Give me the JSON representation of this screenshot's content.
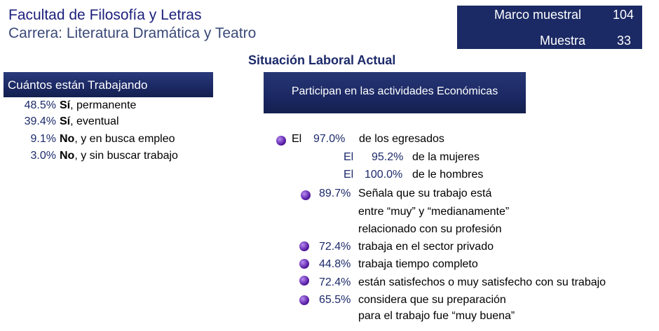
{
  "header": {
    "title": "Facultad de Filosofía y Letras",
    "subtitle": "Carrera: Literatura Dramática y Teatro"
  },
  "stats": {
    "marco_label": "Marco muestral",
    "marco_value": "104",
    "muestra_label": "Muestra",
    "muestra_value": "33"
  },
  "section_title": "Situación Laboral  Actual",
  "working": {
    "heading": "Cuántos están Trabajando",
    "items": [
      {
        "pct": "48.5%",
        "bold": "Sí",
        "rest": ", permanente"
      },
      {
        "pct": "39.4%",
        "bold": "Sí",
        "rest": ", eventual"
      },
      {
        "pct": "9.1%",
        "bold": "No",
        "rest": ", y en busca empleo"
      },
      {
        "pct": "3.0%",
        "bold": "No",
        "rest": ", y sin buscar trabajo"
      }
    ]
  },
  "economic": {
    "heading": "Participan en las actividades Económicas",
    "main": {
      "prefix": "El",
      "pct": "97.0%",
      "text": "de los egresados"
    },
    "sub": [
      {
        "prefix": "El",
        "pct": "95.2%",
        "text": "de la mujeres"
      },
      {
        "prefix": "El",
        "pct": "100.0%",
        "text": "de le hombres"
      }
    ],
    "bullets": [
      {
        "pct": "89.7%",
        "lines": [
          "Señala que su trabajo está",
          "entre “muy” y “medianamente”",
          "relacionado con su profesión"
        ]
      },
      {
        "pct": "72.4%",
        "lines": [
          "trabaja en el sector privado"
        ]
      },
      {
        "pct": "44.8%",
        "lines": [
          "trabaja tiempo completo"
        ]
      },
      {
        "pct": "72.4%",
        "lines": [
          "están satisfechos o muy satisfecho con su trabajo"
        ]
      },
      {
        "pct": "65.5%",
        "lines": [
          "considera que su preparación",
          "para el trabajo fue “muy buena”"
        ]
      }
    ]
  },
  "colors": {
    "bar": "#1b2863",
    "bullet": "#5a1fa8",
    "title": "#1c1f7c"
  }
}
